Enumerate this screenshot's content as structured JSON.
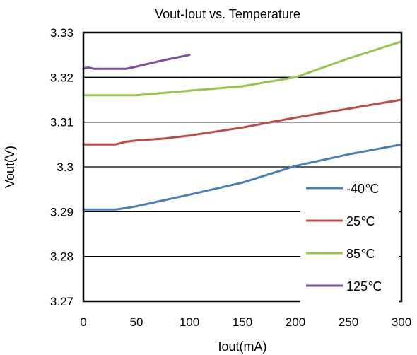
{
  "chart_data": {
    "type": "line",
    "title": "Vout-Iout vs. Temperature",
    "xlabel": "Iout(mA)",
    "ylabel": "Vout(V)",
    "xlim": [
      0,
      300
    ],
    "ylim": [
      3.27,
      3.33
    ],
    "xticks": [
      "0",
      "50",
      "100",
      "150",
      "200",
      "250",
      "300"
    ],
    "yticks": [
      "3.33",
      "3.32",
      "3.31",
      "3.3",
      "3.29",
      "3.28",
      "3.27"
    ],
    "grid": "horizontal",
    "legend_position": "right",
    "series": [
      {
        "name": "-40℃",
        "color": "#4a7ebb",
        "points": [
          [
            0,
            3.2905
          ],
          [
            10,
            3.2905
          ],
          [
            20,
            3.2905
          ],
          [
            30,
            3.2905
          ],
          [
            40,
            3.2908
          ],
          [
            50,
            3.2912
          ],
          [
            75,
            3.2925
          ],
          [
            100,
            3.2938
          ],
          [
            150,
            3.2965
          ],
          [
            200,
            3.3002
          ],
          [
            250,
            3.3028
          ],
          [
            300,
            3.305
          ]
        ]
      },
      {
        "name": "25℃",
        "color": "#be4b48",
        "points": [
          [
            0,
            3.305
          ],
          [
            10,
            3.305
          ],
          [
            20,
            3.305
          ],
          [
            30,
            3.305
          ],
          [
            40,
            3.3056
          ],
          [
            50,
            3.3059
          ],
          [
            75,
            3.3063
          ],
          [
            100,
            3.307
          ],
          [
            150,
            3.3088
          ],
          [
            200,
            3.311
          ],
          [
            250,
            3.313
          ],
          [
            300,
            3.315
          ]
        ]
      },
      {
        "name": "85℃",
        "color": "#98c54f",
        "points": [
          [
            0,
            3.316
          ],
          [
            10,
            3.316
          ],
          [
            20,
            3.316
          ],
          [
            30,
            3.316
          ],
          [
            40,
            3.316
          ],
          [
            50,
            3.316
          ],
          [
            75,
            3.3165
          ],
          [
            100,
            3.317
          ],
          [
            150,
            3.318
          ],
          [
            200,
            3.32
          ],
          [
            250,
            3.3242
          ],
          [
            300,
            3.328
          ]
        ]
      },
      {
        "name": "125℃",
        "color": "#7d4ea0",
        "points": [
          [
            0,
            3.322
          ],
          [
            5,
            3.3222
          ],
          [
            10,
            3.3219
          ],
          [
            20,
            3.3219
          ],
          [
            30,
            3.3219
          ],
          [
            40,
            3.3219
          ],
          [
            50,
            3.3224
          ],
          [
            75,
            3.3238
          ],
          [
            100,
            3.325
          ]
        ]
      }
    ]
  }
}
